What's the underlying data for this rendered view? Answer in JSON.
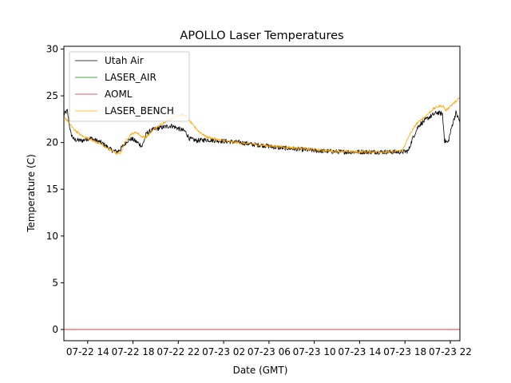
{
  "chart_data": {
    "type": "line",
    "title": "APOLLO Laser Temperatures",
    "xlabel": "Date (GMT)",
    "ylabel": "Temperature (C)",
    "x_unit": "hours since 07-22 00:00 GMT",
    "xlim": [
      11.9,
      46.85
    ],
    "ylim": [
      -1.2,
      30.3
    ],
    "yticks": [
      0,
      5,
      10,
      15,
      20,
      25,
      30
    ],
    "xticks": [
      {
        "value": 14,
        "label": "07-22 14"
      },
      {
        "value": 18,
        "label": "07-22 18"
      },
      {
        "value": 22,
        "label": "07-22 22"
      },
      {
        "value": 26,
        "label": "07-23 02"
      },
      {
        "value": 30,
        "label": "07-23 06"
      },
      {
        "value": 34,
        "label": "07-23 10"
      },
      {
        "value": 38,
        "label": "07-23 14"
      },
      {
        "value": 42,
        "label": "07-23 18"
      },
      {
        "value": 46,
        "label": "07-23 22"
      }
    ],
    "legend_position": "top-left",
    "series": [
      {
        "name": "Utah Air",
        "color": "#000000",
        "noise": 0.5,
        "x": [
          11.9,
          12.2,
          12.5,
          12.8,
          13.5,
          14.2,
          15.2,
          16.1,
          16.6,
          16.9,
          17.5,
          17.9,
          18.4,
          18.8,
          19.2,
          19.8,
          20.5,
          21.4,
          22.0,
          22.6,
          23.0,
          23.6,
          24.5,
          25.5,
          26.5,
          27.5,
          28.5,
          29.5,
          30.5,
          31.5,
          32.5,
          33.5,
          34.5,
          35.5,
          36.5,
          37.5,
          38.5,
          39.5,
          40.5,
          41.2,
          41.8,
          42.3,
          42.7,
          43.2,
          44.0,
          44.8,
          45.3,
          45.5,
          45.8,
          46.2,
          46.5,
          46.85
        ],
        "y": [
          23.0,
          23.4,
          21.0,
          20.3,
          20.2,
          20.5,
          20.0,
          19.2,
          19.0,
          19.3,
          20.2,
          20.4,
          20.0,
          19.6,
          21.0,
          21.4,
          21.6,
          21.8,
          21.5,
          21.2,
          20.4,
          20.2,
          20.3,
          20.2,
          20.1,
          20.0,
          19.8,
          19.7,
          19.5,
          19.4,
          19.3,
          19.2,
          19.1,
          19.05,
          19.0,
          19.0,
          19.0,
          19.0,
          19.0,
          19.0,
          19.0,
          19.1,
          20.5,
          21.8,
          22.6,
          23.2,
          23.1,
          20.2,
          20.0,
          22.0,
          23.2,
          22.2
        ]
      },
      {
        "name": "LASER_AIR",
        "color": "#008000",
        "noise": 0,
        "x": [],
        "y": []
      },
      {
        "name": "AOML",
        "color": "#d62728",
        "noise": 0,
        "x": [
          11.9,
          46.85
        ],
        "y": [
          0.0,
          0.0
        ]
      },
      {
        "name": "LASER_BENCH",
        "color": "#ffa500",
        "noise": 0.25,
        "x": [
          11.9,
          12.3,
          12.8,
          13.5,
          14.3,
          15.2,
          16.0,
          16.6,
          16.9,
          17.3,
          17.8,
          18.3,
          18.8,
          19.2,
          19.8,
          20.3,
          20.8,
          21.3,
          21.8,
          22.3,
          22.7,
          23.2,
          23.8,
          24.5,
          25.5,
          26.5,
          27.5,
          28.5,
          29.5,
          30.5,
          31.5,
          32.5,
          33.5,
          34.5,
          35.5,
          36.5,
          37.5,
          38.5,
          39.5,
          40.5,
          41.2,
          41.8,
          42.4,
          43.0,
          43.8,
          44.5,
          45.0,
          45.4,
          45.6,
          46.0,
          46.5,
          46.85
        ],
        "y": [
          22.8,
          22.2,
          21.4,
          20.7,
          20.3,
          19.8,
          19.2,
          18.8,
          18.9,
          20.0,
          20.9,
          21.1,
          20.6,
          20.6,
          21.4,
          21.8,
          22.2,
          22.5,
          22.8,
          23.0,
          22.8,
          22.0,
          21.2,
          20.6,
          20.3,
          20.1,
          19.95,
          19.85,
          19.7,
          19.6,
          19.5,
          19.4,
          19.3,
          19.2,
          19.1,
          19.05,
          19.0,
          19.0,
          19.0,
          19.0,
          19.05,
          19.2,
          20.8,
          22.0,
          22.8,
          23.6,
          23.9,
          23.9,
          23.4,
          23.9,
          24.4,
          24.8
        ]
      }
    ]
  }
}
